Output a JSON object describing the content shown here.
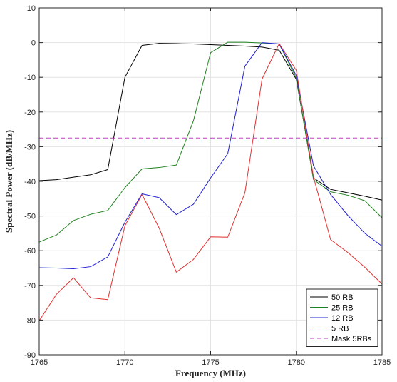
{
  "chart_data": {
    "type": "line",
    "xlabel": "Frequency (MHz)",
    "ylabel": "Spectral Power (dB/MHz)",
    "xlim": [
      1765,
      1785
    ],
    "ylim": [
      -90,
      10
    ],
    "xticks": [
      1765,
      1770,
      1775,
      1780,
      1785
    ],
    "yticks": [
      10,
      0,
      -10,
      -20,
      -30,
      -40,
      -50,
      -60,
      -70,
      -80,
      -90
    ],
    "grid": true,
    "legend_position": "bottom-right",
    "series": [
      {
        "name": "50 RB",
        "color": "#000000",
        "style": "solid",
        "x": [
          1765,
          1766,
          1767,
          1768,
          1769,
          1770,
          1771,
          1772,
          1773,
          1774,
          1775,
          1776,
          1777,
          1778,
          1779,
          1780,
          1781,
          1782,
          1783,
          1784,
          1785
        ],
        "y": [
          -39.8,
          -39.5,
          -38.8,
          -38.1,
          -36.6,
          -10.0,
          -0.8,
          -0.2,
          -0.3,
          -0.4,
          -0.6,
          -0.8,
          -1.0,
          -1.3,
          -2.2,
          -10.6,
          -39.0,
          -42.3,
          -43.3,
          -44.3,
          -45.4
        ]
      },
      {
        "name": "25 RB",
        "color": "#208020",
        "style": "solid",
        "x": [
          1765,
          1766,
          1767,
          1768,
          1769,
          1770,
          1771,
          1772,
          1773,
          1774,
          1775,
          1776,
          1777,
          1778,
          1779,
          1780,
          1781,
          1782,
          1783,
          1784,
          1785
        ],
        "y": [
          -57.5,
          -55.5,
          -51.3,
          -49.5,
          -48.4,
          -41.8,
          -36.4,
          -36.0,
          -35.3,
          -22.5,
          -2.9,
          0.1,
          0.1,
          -0.1,
          -0.4,
          -10.2,
          -39.5,
          -43.0,
          -44.0,
          -45.6,
          -50.5
        ]
      },
      {
        "name": "12 RB",
        "color": "#2020d0",
        "style": "solid",
        "x": [
          1765,
          1766,
          1767,
          1768,
          1769,
          1770,
          1771,
          1772,
          1773,
          1774,
          1775,
          1776,
          1777,
          1778,
          1779,
          1780,
          1781,
          1782,
          1783,
          1784,
          1785
        ],
        "y": [
          -64.9,
          -65.0,
          -65.2,
          -64.6,
          -61.8,
          -51.8,
          -43.6,
          -44.7,
          -49.6,
          -46.6,
          -39.0,
          -32.0,
          -6.8,
          0.0,
          -0.4,
          -9.5,
          -35.5,
          -43.8,
          -49.8,
          -55.0,
          -58.7
        ]
      },
      {
        "name": "5 RB",
        "color": "#e03030",
        "style": "solid",
        "x": [
          1765,
          1766,
          1767,
          1768,
          1769,
          1770,
          1771,
          1772,
          1773,
          1774,
          1775,
          1776,
          1777,
          1778,
          1779,
          1780,
          1781,
          1782,
          1783,
          1784,
          1785
        ],
        "y": [
          -80.2,
          -72.6,
          -67.8,
          -73.6,
          -74.1,
          -52.8,
          -43.8,
          -53.5,
          -66.2,
          -62.5,
          -56.0,
          -56.1,
          -43.3,
          -10.5,
          -0.3,
          -8.0,
          -38.7,
          -56.8,
          -60.5,
          -64.8,
          -69.6
        ]
      },
      {
        "name": "Mask 5RBs",
        "color": "#c040c0",
        "style": "dashed",
        "x": [
          1765,
          1785
        ],
        "y": [
          -27.5,
          -27.5
        ]
      }
    ]
  }
}
